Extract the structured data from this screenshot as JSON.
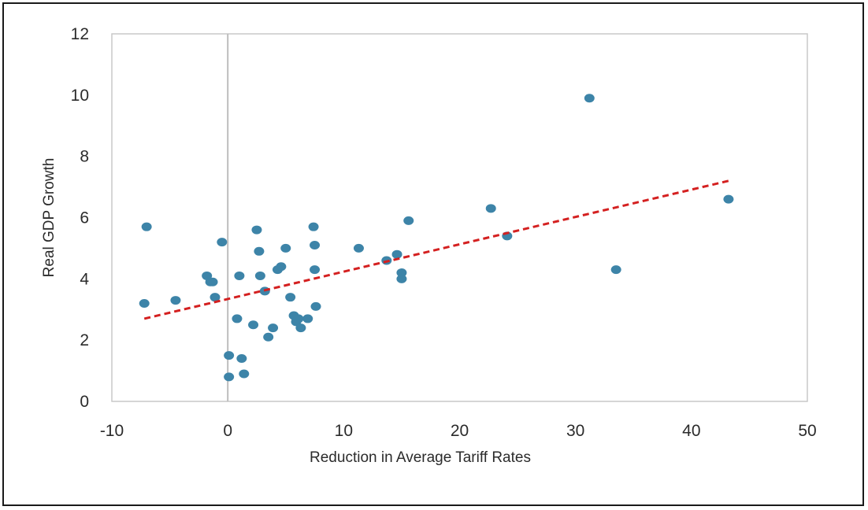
{
  "chart_data": {
    "type": "scatter",
    "title": "",
    "xlabel": "Reduction in Average Tariff Rates",
    "ylabel": "Real GDP Growth",
    "xlim": [
      -10,
      50
    ],
    "ylim": [
      0,
      12
    ],
    "xticks": [
      -10,
      0,
      10,
      20,
      30,
      40,
      50
    ],
    "yticks": [
      0,
      2,
      4,
      6,
      8,
      10,
      12
    ],
    "xtick_labels": [
      "-10",
      "0",
      "10",
      "20",
      "30",
      "40",
      "50"
    ],
    "ytick_labels": [
      "0",
      "2",
      "4",
      "6",
      "8",
      "10",
      "12"
    ],
    "grid": false,
    "point_color": "#3d84a8",
    "trend_color": "#d42020",
    "points": [
      {
        "x": -7.0,
        "y": 5.7
      },
      {
        "x": -7.2,
        "y": 3.2
      },
      {
        "x": -4.5,
        "y": 3.3
      },
      {
        "x": -1.8,
        "y": 4.1
      },
      {
        "x": -1.5,
        "y": 3.9
      },
      {
        "x": -1.3,
        "y": 3.9
      },
      {
        "x": -1.1,
        "y": 3.4
      },
      {
        "x": -0.5,
        "y": 5.2
      },
      {
        "x": 0.1,
        "y": 1.5
      },
      {
        "x": 0.1,
        "y": 0.8
      },
      {
        "x": 0.8,
        "y": 2.7
      },
      {
        "x": 1.0,
        "y": 4.1
      },
      {
        "x": 1.2,
        "y": 1.4
      },
      {
        "x": 1.4,
        "y": 0.9
      },
      {
        "x": 2.2,
        "y": 2.5
      },
      {
        "x": 2.5,
        "y": 5.6
      },
      {
        "x": 2.7,
        "y": 4.9
      },
      {
        "x": 2.8,
        "y": 4.1
      },
      {
        "x": 3.2,
        "y": 3.6
      },
      {
        "x": 3.5,
        "y": 2.1
      },
      {
        "x": 3.9,
        "y": 2.4
      },
      {
        "x": 4.3,
        "y": 4.3
      },
      {
        "x": 4.6,
        "y": 4.4
      },
      {
        "x": 5.0,
        "y": 5.0
      },
      {
        "x": 5.4,
        "y": 3.4
      },
      {
        "x": 5.7,
        "y": 2.8
      },
      {
        "x": 5.9,
        "y": 2.6
      },
      {
        "x": 6.1,
        "y": 2.7
      },
      {
        "x": 6.3,
        "y": 2.4
      },
      {
        "x": 6.9,
        "y": 2.7
      },
      {
        "x": 7.4,
        "y": 5.7
      },
      {
        "x": 7.5,
        "y": 5.1
      },
      {
        "x": 7.5,
        "y": 4.3
      },
      {
        "x": 7.6,
        "y": 3.1
      },
      {
        "x": 11.3,
        "y": 5.0
      },
      {
        "x": 13.7,
        "y": 4.6
      },
      {
        "x": 14.6,
        "y": 4.8
      },
      {
        "x": 15.0,
        "y": 4.2
      },
      {
        "x": 15.0,
        "y": 4.0
      },
      {
        "x": 15.6,
        "y": 5.9
      },
      {
        "x": 22.7,
        "y": 6.3
      },
      {
        "x": 24.1,
        "y": 5.4
      },
      {
        "x": 31.2,
        "y": 9.9
      },
      {
        "x": 33.5,
        "y": 4.3
      },
      {
        "x": 43.2,
        "y": 6.6
      }
    ],
    "trend_line": {
      "x": [
        -7.2,
        43.2
      ],
      "y": [
        2.7,
        7.2
      ],
      "style": "dashed"
    }
  }
}
